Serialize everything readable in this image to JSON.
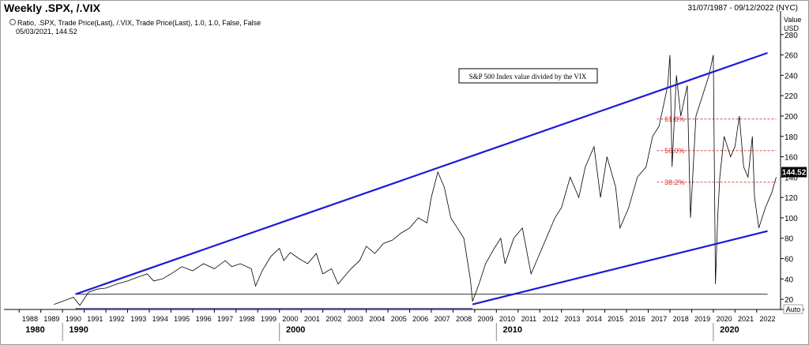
{
  "header": {
    "title": "Weekly .SPX, /.VIX",
    "date_range": "31/07/1987 - 09/12/2022 (NYC)"
  },
  "legend": {
    "line1": "Ratio, .SPX, Trade Price(Last), /.VIX, Trade Price(Last),  1.0, 1.0, False, False",
    "line2": "05/03/2021, 144.52"
  },
  "chart_data": {
    "type": "line",
    "title": "Weekly .SPX, /.VIX",
    "annotation": "S&P 500 Index value divided by the VIX",
    "ylabel": "Value\nUSD",
    "yunit_line1": "Value",
    "yunit_line2": "USD",
    "ylim": [
      10,
      300
    ],
    "y_ticks": [
      20,
      40,
      60,
      80,
      100,
      120,
      140,
      160,
      180,
      200,
      220,
      240,
      260,
      280
    ],
    "x_year_ticks": [
      "1988",
      "1989",
      "1990",
      "1991",
      "1992",
      "1993",
      "1994",
      "1995",
      "1996",
      "1997",
      "1998",
      "1999",
      "2000",
      "2001",
      "2002",
      "2003",
      "2004",
      "2005",
      "2006",
      "2007",
      "2008",
      "2009",
      "2010",
      "2011",
      "2012",
      "2013",
      "2014",
      "2015",
      "2016",
      "2017",
      "2018",
      "2019",
      "2020",
      "2021",
      "2022"
    ],
    "x_decade_labels": [
      "1980",
      "1990",
      "2000",
      "2010",
      "2020"
    ],
    "last_value_label": "144.52",
    "auto_label": "Auto",
    "fib_levels": [
      {
        "label": "61.8%",
        "value": 197
      },
      {
        "label": "50.0%",
        "value": 166
      },
      {
        "label": "38.2%",
        "value": 135
      }
    ],
    "trend_lines": [
      {
        "name": "upper",
        "from": [
          1990.6,
          25
        ],
        "to": [
          2022.5,
          262
        ]
      },
      {
        "name": "lower",
        "from": [
          2008.9,
          15
        ],
        "to": [
          2022.5,
          87
        ]
      }
    ],
    "horizontal_lines": [
      {
        "value": 25,
        "from": 1990.6,
        "to": 2022.5
      },
      {
        "value": 11,
        "from": 1990.6,
        "to": 2008.9
      }
    ],
    "series": [
      {
        "x": [
          1989.6,
          1990.0,
          1990.5,
          1990.8,
          1991.2,
          1991.6,
          1992.0,
          1992.5,
          1993.0,
          1993.5,
          1993.9,
          1994.2,
          1994.6,
          1995.0,
          1995.5,
          1996.0,
          1996.5,
          1997.0,
          1997.5,
          1997.8,
          1998.2,
          1998.7,
          1998.9,
          1999.2,
          1999.6,
          2000.0,
          2000.2,
          2000.5,
          2000.9,
          2001.3,
          2001.7,
          2002.0,
          2002.4,
          2002.7,
          2002.9,
          2003.3,
          2003.7,
          2004.0,
          2004.4,
          2004.8,
          2005.2,
          2005.6,
          2006.0,
          2006.4,
          2006.8,
          2007.0,
          2007.3,
          2007.6,
          2007.9,
          2008.2,
          2008.5,
          2008.8,
          2008.9,
          2009.2,
          2009.5,
          2009.9,
          2010.2,
          2010.4,
          2010.8,
          2011.2,
          2011.6,
          2011.9,
          2012.3,
          2012.7,
          2013.0,
          2013.4,
          2013.8,
          2014.1,
          2014.5,
          2014.8,
          2015.1,
          2015.5,
          2015.7,
          2016.1,
          2016.5,
          2016.9,
          2017.2,
          2017.5,
          2017.9,
          2018.0,
          2018.1,
          2018.3,
          2018.5,
          2018.8,
          2018.95,
          2019.2,
          2019.5,
          2019.8,
          2020.0,
          2020.1,
          2020.2,
          2020.3,
          2020.5,
          2020.8,
          2021.0,
          2021.2,
          2021.4,
          2021.6,
          2021.8,
          2021.9,
          2022.1,
          2022.4,
          2022.7,
          2022.9
        ],
        "y": [
          15,
          18,
          22,
          14,
          27,
          30,
          31,
          35,
          38,
          42,
          45,
          38,
          40,
          45,
          52,
          48,
          55,
          50,
          58,
          52,
          55,
          50,
          33,
          48,
          62,
          70,
          58,
          66,
          60,
          55,
          65,
          45,
          50,
          35,
          40,
          50,
          58,
          72,
          65,
          75,
          78,
          85,
          90,
          100,
          95,
          120,
          145,
          130,
          100,
          90,
          80,
          40,
          18,
          35,
          55,
          70,
          80,
          55,
          80,
          90,
          45,
          60,
          80,
          100,
          110,
          140,
          120,
          150,
          170,
          120,
          160,
          130,
          90,
          110,
          140,
          150,
          180,
          190,
          230,
          260,
          150,
          240,
          200,
          230,
          100,
          200,
          220,
          240,
          260,
          35,
          100,
          140,
          180,
          160,
          170,
          200,
          150,
          140,
          180,
          120,
          90,
          110,
          125,
          140
        ]
      }
    ]
  }
}
